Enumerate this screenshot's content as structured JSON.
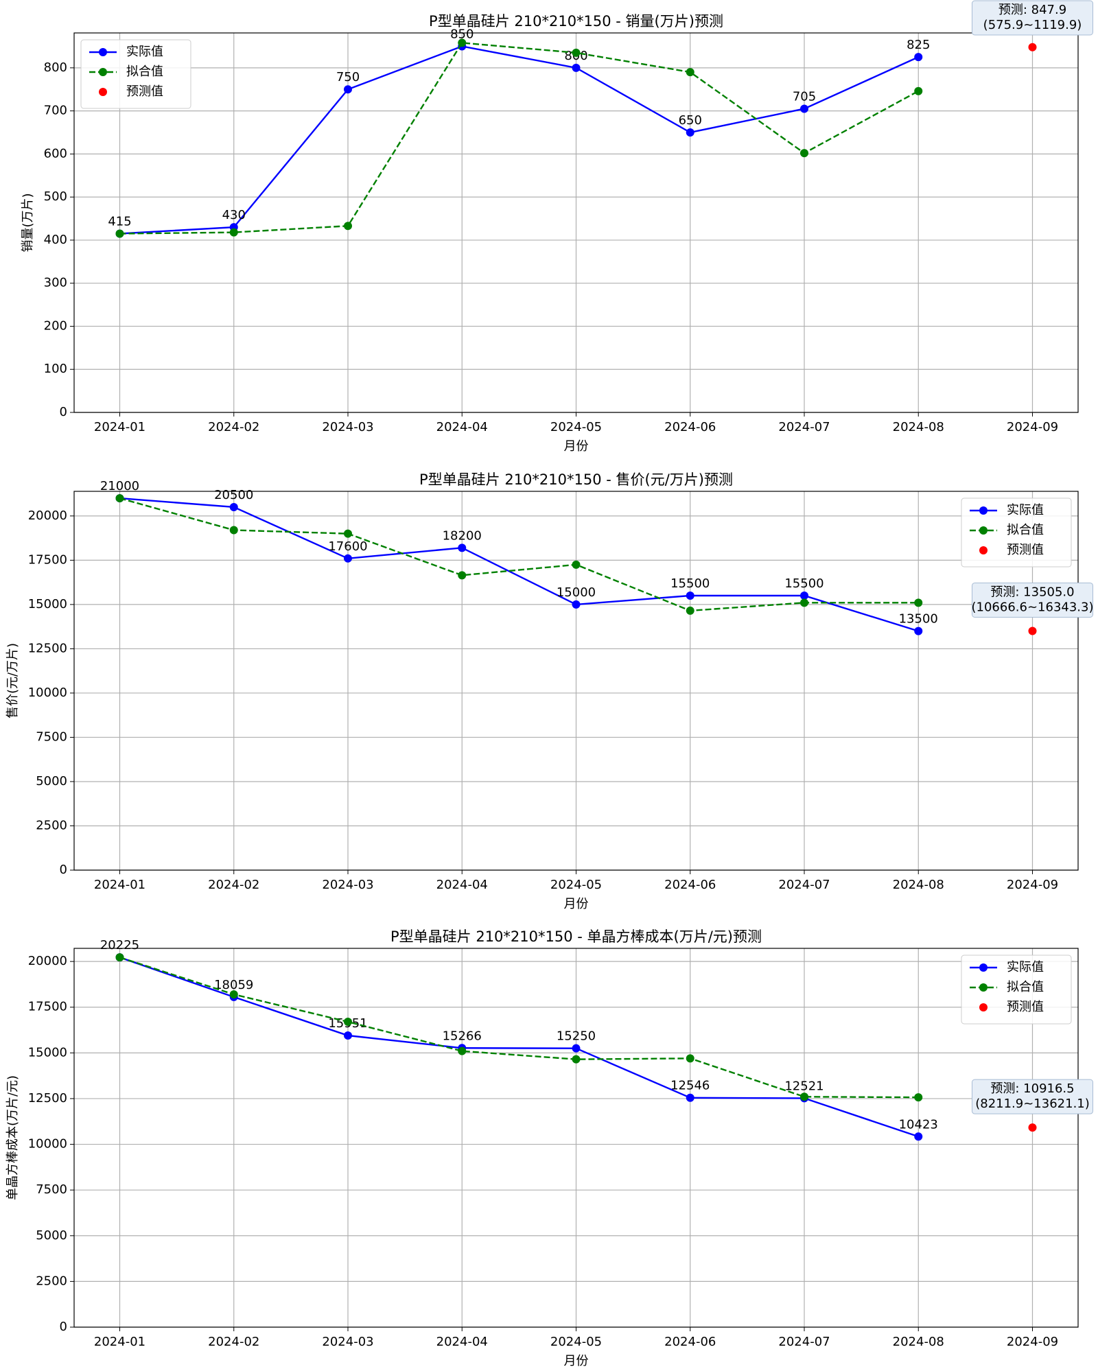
{
  "chart_data": [
    {
      "type": "line",
      "title": "P型单晶硅片 210*210*150 - 销量(万片)预测",
      "xlabel": "月份",
      "ylabel": "销量(万片)",
      "categories": [
        "2024-01",
        "2024-02",
        "2024-03",
        "2024-04",
        "2024-05",
        "2024-06",
        "2024-07",
        "2024-08",
        "2024-09"
      ],
      "series": [
        {
          "name": "实际值",
          "color": "#0000ff",
          "linestyle": "solid",
          "values": [
            415,
            430,
            750,
            850,
            800,
            650,
            705,
            825,
            null
          ]
        },
        {
          "name": "拟合值",
          "color": "#008000",
          "linestyle": "dashed",
          "values": [
            415,
            418,
            433,
            858,
            835,
            790,
            602,
            746,
            null
          ]
        },
        {
          "name": "预测值",
          "color": "#ff0000",
          "linestyle": "none",
          "values": [
            null,
            null,
            null,
            null,
            null,
            null,
            null,
            null,
            847.9
          ]
        }
      ],
      "annotation": [
        "预测: 847.9",
        "(575.9~1119.9)"
      ],
      "ylim": [
        0,
        881
      ],
      "yticks": [
        0,
        100,
        200,
        300,
        400,
        500,
        600,
        700,
        800
      ],
      "grid": true,
      "legend": "upper-left"
    },
    {
      "type": "line",
      "title": "P型单晶硅片 210*210*150 - 售价(元/万片)预测",
      "xlabel": "月份",
      "ylabel": "售价(元/万片)",
      "categories": [
        "2024-01",
        "2024-02",
        "2024-03",
        "2024-04",
        "2024-05",
        "2024-06",
        "2024-07",
        "2024-08",
        "2024-09"
      ],
      "series": [
        {
          "name": "实际值",
          "color": "#0000ff",
          "linestyle": "solid",
          "values": [
            21000,
            20500,
            17600,
            18200,
            15000,
            15500,
            15500,
            13500,
            null
          ]
        },
        {
          "name": "拟合值",
          "color": "#008000",
          "linestyle": "dashed",
          "values": [
            21000,
            19200,
            19000,
            16650,
            17250,
            14650,
            15100,
            15100,
            null
          ]
        },
        {
          "name": "预测值",
          "color": "#ff0000",
          "linestyle": "none",
          "values": [
            null,
            null,
            null,
            null,
            null,
            null,
            null,
            null,
            13505.0
          ]
        }
      ],
      "annotation": [
        "预测: 13505.0",
        "(10666.6~16343.3)"
      ],
      "ylim": [
        0,
        21390
      ],
      "yticks": [
        0,
        2500,
        5000,
        7500,
        10000,
        12500,
        15000,
        17500,
        20000
      ],
      "grid": true,
      "legend": "upper-right"
    },
    {
      "type": "line",
      "title": "P型单晶硅片 210*210*150 - 单晶方棒成本(万片/元)预测",
      "xlabel": "月份",
      "ylabel": "单晶方棒成本(万片/元)",
      "categories": [
        "2024-01",
        "2024-02",
        "2024-03",
        "2024-04",
        "2024-05",
        "2024-06",
        "2024-07",
        "2024-08",
        "2024-09"
      ],
      "series": [
        {
          "name": "实际值",
          "color": "#0000ff",
          "linestyle": "solid",
          "values": [
            20225,
            18059,
            15951,
            15266,
            15250,
            12546,
            12521,
            10423,
            null
          ]
        },
        {
          "name": "拟合值",
          "color": "#008000",
          "linestyle": "dashed",
          "values": [
            20225,
            18200,
            16700,
            15100,
            14650,
            14700,
            12600,
            12570,
            null
          ]
        },
        {
          "name": "预测值",
          "color": "#ff0000",
          "linestyle": "none",
          "values": [
            null,
            null,
            null,
            null,
            null,
            null,
            null,
            null,
            10916.5
          ]
        }
      ],
      "annotation": [
        "预测: 10916.5",
        "(8211.9~13621.1)"
      ],
      "ylim": [
        0,
        20718
      ],
      "yticks": [
        0,
        2500,
        5000,
        7500,
        10000,
        12500,
        15000,
        17500,
        20000
      ],
      "grid": true,
      "legend": "upper-right"
    }
  ]
}
